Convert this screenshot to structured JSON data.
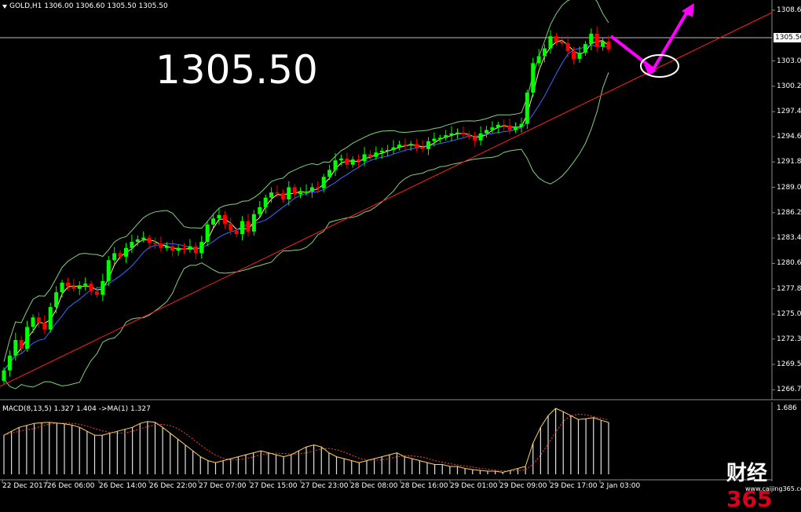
{
  "header": {
    "ticker": "GOLD,H1 1306.00 1306.60 1305.50 1305.50"
  },
  "price_callout": "1305.50",
  "macd_label": "MACD(8,13,5) 1.327 1.404 ->MA(1) 1.327",
  "current_price_tag": "1305.50",
  "price_axis": [
    "1308.60",
    "1303.00",
    "1300.20",
    "1297.40",
    "1294.65",
    "1291.85",
    "1289.05",
    "1286.25",
    "1283.45",
    "1280.65",
    "1277.85",
    "1275.05",
    "1272.30",
    "1269.50",
    "1266.70"
  ],
  "macd_axis": [
    "1.686"
  ],
  "time_axis": [
    "22 Dec 2017",
    "26 Dec 06:00",
    "26 Dec 14:00",
    "26 Dec 22:00",
    "27 Dec 07:00",
    "27 Dec 15:00",
    "27 Dec 23:00",
    "28 Dec 08:00",
    "28 Dec 16:00",
    "29 Dec 01:00",
    "29 Dec 09:00",
    "29 Dec 17:00",
    "2 Jan 03:00"
  ],
  "watermark": {
    "cn": "财经",
    "num": "365",
    "url": "www.caijing365.com"
  },
  "colors": {
    "bull": "#00ff00",
    "bear": "#ff0000",
    "trendline": "#ff2020",
    "bands": "#7fd07f",
    "ma_fast": "#ffff66",
    "ma_slow": "#3b6bff",
    "arrow": "#ff00ff",
    "macd_signal": "#ff4040"
  },
  "chart_data": {
    "type": "candlestick",
    "symbol": "GOLD",
    "timeframe": "H1",
    "ohlc": {
      "open": 1306.0,
      "high": 1306.6,
      "low": 1305.5,
      "close": 1305.5
    },
    "ylim": [
      1265.3,
      1310.0
    ],
    "closes": [
      1268.5,
      1270.2,
      1272.0,
      1271.0,
      1273.5,
      1274.6,
      1274.0,
      1273.2,
      1275.8,
      1277.5,
      1278.6,
      1278.2,
      1277.9,
      1278.3,
      1278.5,
      1277.6,
      1277.2,
      1278.8,
      1281.2,
      1282.0,
      1281.6,
      1282.6,
      1283.3,
      1283.6,
      1283.8,
      1283.2,
      1283.1,
      1282.6,
      1282.8,
      1282.3,
      1282.6,
      1282.4,
      1282.8,
      1282.0,
      1283.3,
      1285.3,
      1286.0,
      1286.4,
      1285.4,
      1284.6,
      1284.2,
      1285.7,
      1284.5,
      1286.5,
      1287.3,
      1288.4,
      1289.0,
      1288.9,
      1288.2,
      1289.6,
      1288.8,
      1289.0,
      1289.1,
      1289.6,
      1289.5,
      1290.8,
      1291.6,
      1292.7,
      1292.9,
      1292.2,
      1292.8,
      1292.6,
      1293.4,
      1293.1,
      1293.6,
      1293.8,
      1293.9,
      1294.2,
      1294.5,
      1294.4,
      1294.6,
      1294.2,
      1294.0,
      1294.9,
      1295.2,
      1295.3,
      1295.6,
      1295.8,
      1295.9,
      1295.7,
      1295.4,
      1295.0,
      1295.8,
      1296.2,
      1296.5,
      1296.8,
      1296.7,
      1296.2,
      1296.6,
      1296.9,
      1300.5,
      1303.9,
      1304.7,
      1305.6,
      1307.0,
      1306.4,
      1306.2,
      1305.3,
      1304.4,
      1305.1,
      1306.1,
      1307.3,
      1305.8,
      1306.4,
      1305.5
    ],
    "macd": [
      1.0,
      1.1,
      1.2,
      1.25,
      1.3,
      1.32,
      1.33,
      1.31,
      1.29,
      1.26,
      1.2,
      1.1,
      1.0,
      1.0,
      1.05,
      1.1,
      1.15,
      1.2,
      1.3,
      1.35,
      1.33,
      1.2,
      1.05,
      0.9,
      0.75,
      0.6,
      0.45,
      0.35,
      0.3,
      0.35,
      0.4,
      0.45,
      0.5,
      0.55,
      0.6,
      0.55,
      0.5,
      0.45,
      0.5,
      0.6,
      0.7,
      0.75,
      0.7,
      0.55,
      0.45,
      0.4,
      0.35,
      0.3,
      0.35,
      0.4,
      0.45,
      0.5,
      0.55,
      0.45,
      0.4,
      0.35,
      0.3,
      0.25,
      0.25,
      0.2,
      0.2,
      0.15,
      0.12,
      0.1,
      0.08,
      0.08,
      0.05,
      0.1,
      0.15,
      0.2,
      0.8,
      1.2,
      1.5,
      1.686,
      1.6,
      1.5,
      1.4,
      1.42,
      1.45,
      1.38,
      1.327
    ]
  }
}
